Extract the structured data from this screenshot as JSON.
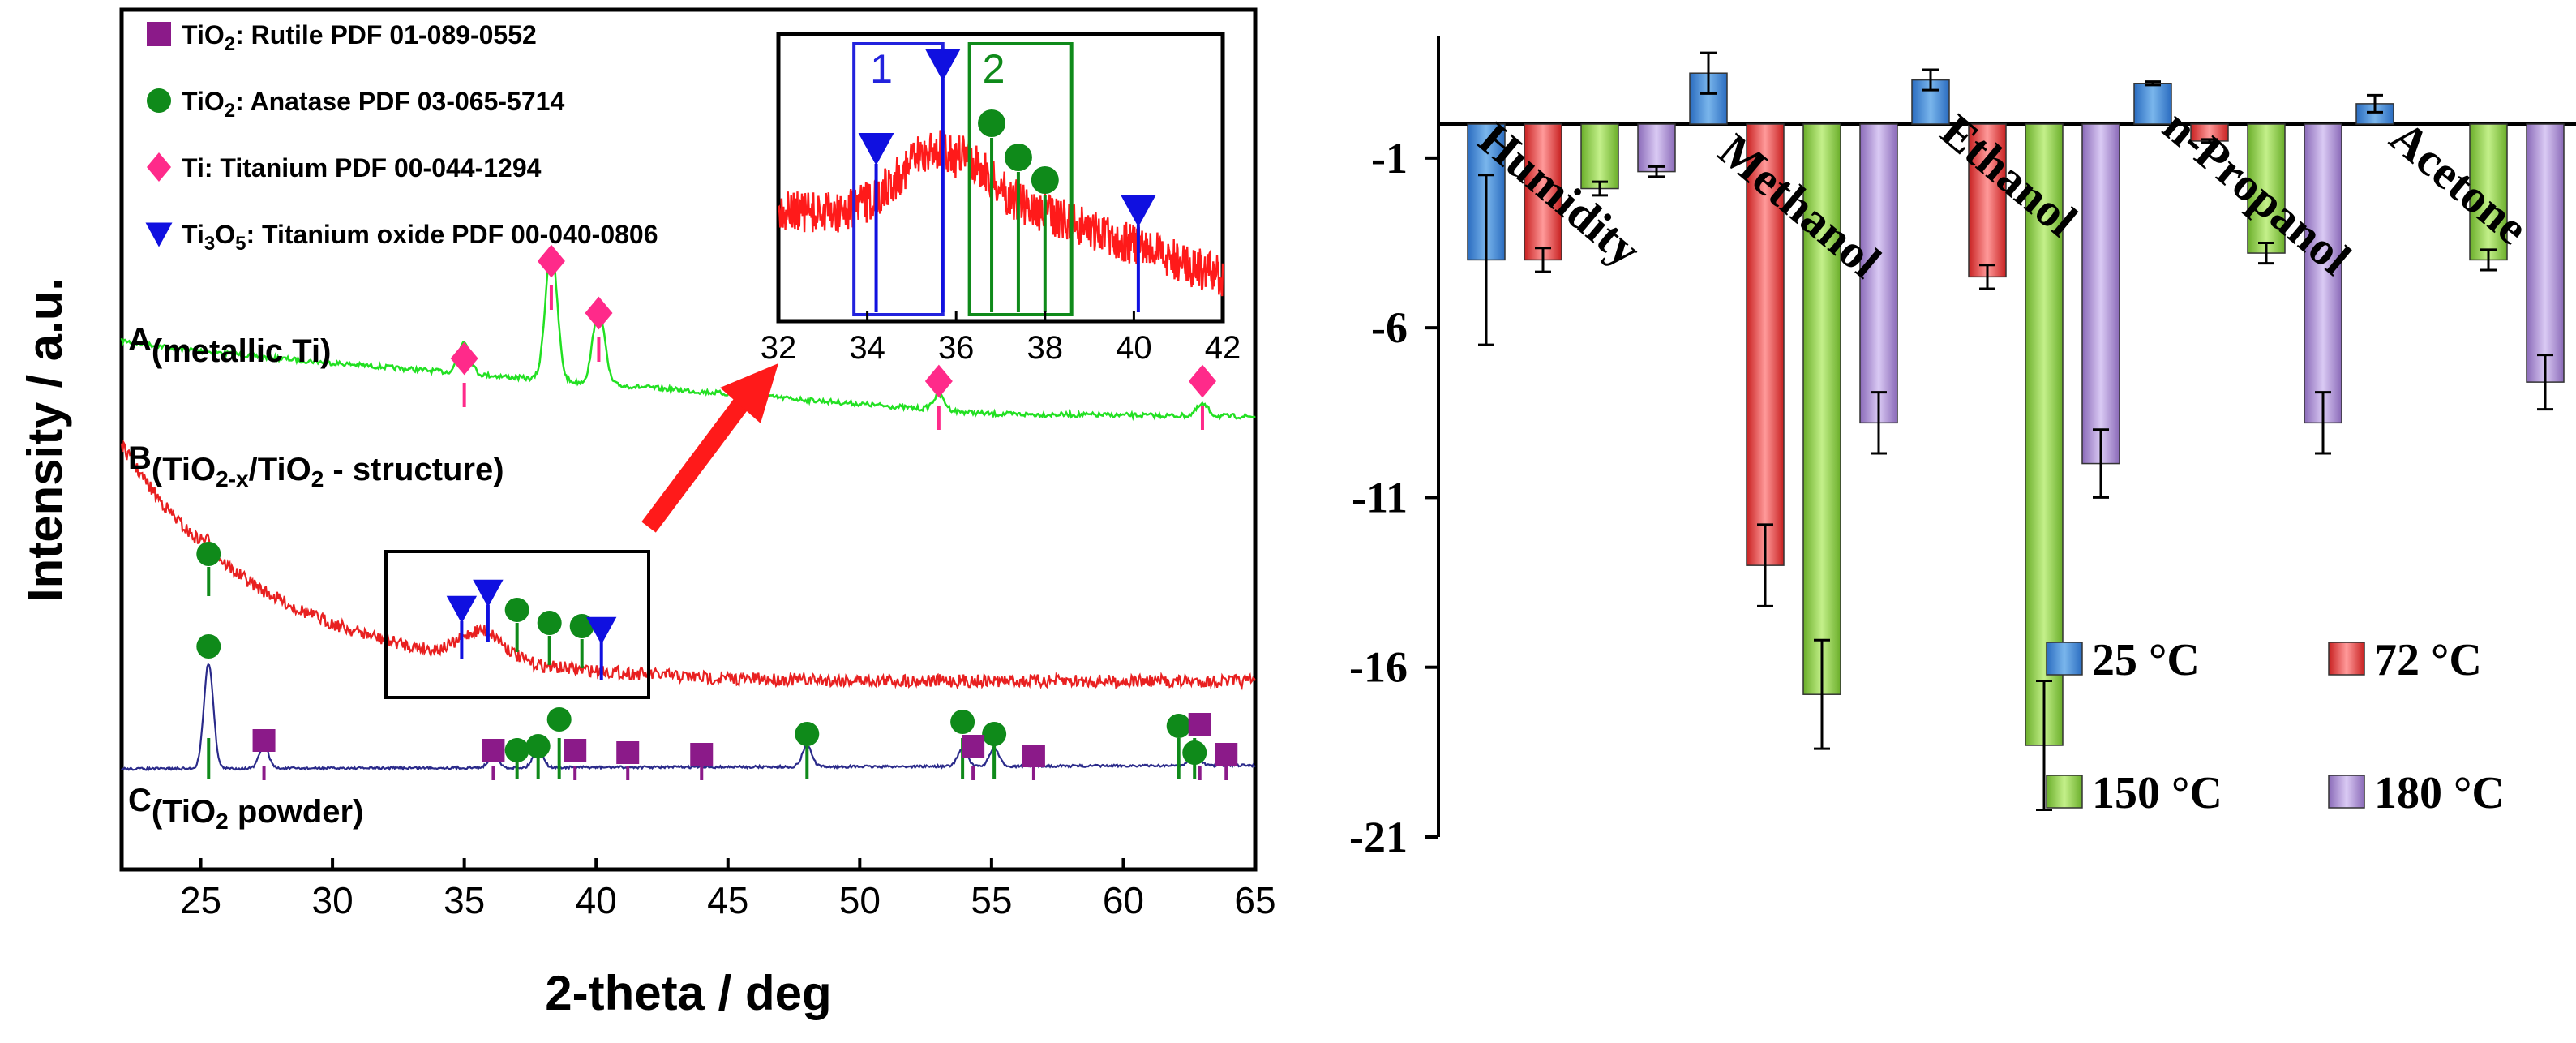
{
  "chart_data": [
    {
      "type": "line",
      "panel": "left",
      "xlabel": "2-theta / deg",
      "ylabel": "Intensity / a.u.",
      "xlim": [
        22,
        65
      ],
      "xticks": [
        25,
        30,
        35,
        40,
        45,
        50,
        55,
        60,
        65
      ],
      "legend": [
        {
          "marker": "square",
          "color": "#8b1a89",
          "compound": "TiO",
          "sub": "2",
          "rest": ": Rutile PDF 01-089-0552"
        },
        {
          "marker": "circle",
          "color": "#0f8a1a",
          "compound": "TiO",
          "sub": "2",
          "rest": ": Anatase PDF 03-065-5714"
        },
        {
          "marker": "diamond",
          "color": "#ff2a8a",
          "compound": "Ti",
          "sub": "",
          "rest": ": Titanium PDF 00-044-1294"
        },
        {
          "marker": "triangle",
          "color": "#1010e0",
          "compound": "Ti",
          "sub": "3",
          "compound2": "O",
          "sub2": "5",
          "rest": ": Titanium oxide PDF 00-040-0806"
        }
      ],
      "series": [
        {
          "name": "A",
          "label_main": "A",
          "label_sub": "(metallic Ti)",
          "color": "#22e022",
          "peaks": [
            35.0,
            38.3,
            40.1,
            53.0,
            63.0
          ],
          "diamond_markers": [
            35.0,
            38.3,
            40.1,
            53.0,
            63.0
          ]
        },
        {
          "name": "B",
          "label_main": "B",
          "label_sub_pre": "(TiO",
          "label_sub_s": "2-x",
          "label_sub_mid": "/TiO",
          "label_sub_s2": "2",
          "label_sub_post": " - structure)",
          "color": "#e82020",
          "circle_markers": [
            25.3,
            37.0,
            37.8,
            38.6
          ],
          "triangle_markers": [
            34.9,
            35.9,
            40.2
          ]
        },
        {
          "name": "C",
          "label_main": "C",
          "label_sub_pre": "(TiO",
          "label_sub_s": "2",
          "label_sub_post": " powder)",
          "color": "#2a2a8a",
          "peaks": [
            25.3,
            27.4,
            36.1,
            37.8,
            48.0,
            53.9,
            55.1,
            62.7
          ],
          "circle_markers": [
            25.3,
            37.0,
            37.8,
            38.6,
            48.0,
            53.9,
            55.1,
            62.1,
            62.7
          ],
          "square_markers": [
            27.4,
            36.1,
            39.2,
            41.2,
            44.0,
            54.3,
            56.6,
            62.9,
            63.9
          ]
        }
      ],
      "inset": {
        "xlim": [
          32,
          42
        ],
        "xticks": [
          32,
          34,
          36,
          38,
          40,
          42
        ],
        "region1_label": "1",
        "region1_range": [
          33.7,
          35.7
        ],
        "region2_label": "2",
        "region2_range": [
          36.3,
          38.6
        ],
        "triangle_markers": [
          34.2,
          35.7,
          40.1
        ],
        "circle_markers": [
          36.8,
          37.4,
          38.0
        ]
      }
    },
    {
      "type": "bar",
      "panel": "right",
      "categories": [
        "Humidity",
        "Methanol",
        "Ethanol",
        "n-Propanol",
        "Acetone"
      ],
      "ylim": [
        -21,
        2
      ],
      "yticks": [
        -1,
        -6,
        -11,
        -16,
        -21
      ],
      "series": [
        {
          "name": "25 °C",
          "color": "#3a8ad8",
          "values": [
            -4.0,
            1.5,
            1.3,
            1.2,
            0.6
          ],
          "errors": [
            2.5,
            0.6,
            0.3,
            0.05,
            0.25
          ]
        },
        {
          "name": "72 °C",
          "color": "#e84040",
          "values": [
            -4.0,
            -13.0,
            -4.5,
            -0.5,
            0
          ],
          "errors": [
            0.35,
            1.2,
            0.35,
            0.05,
            0
          ]
        },
        {
          "name": "150 °C",
          "color": "#8ed445",
          "values": [
            -1.9,
            -16.8,
            -18.3,
            -3.8,
            -4.0
          ],
          "errors": [
            0.2,
            1.6,
            1.9,
            0.3,
            0.3
          ]
        },
        {
          "name": "180 °C",
          "color": "#a88ad8",
          "values": [
            -1.4,
            -8.8,
            -10.0,
            -8.8,
            -7.6
          ],
          "errors": [
            0.15,
            0.9,
            1.0,
            0.9,
            0.8
          ]
        }
      ]
    }
  ]
}
